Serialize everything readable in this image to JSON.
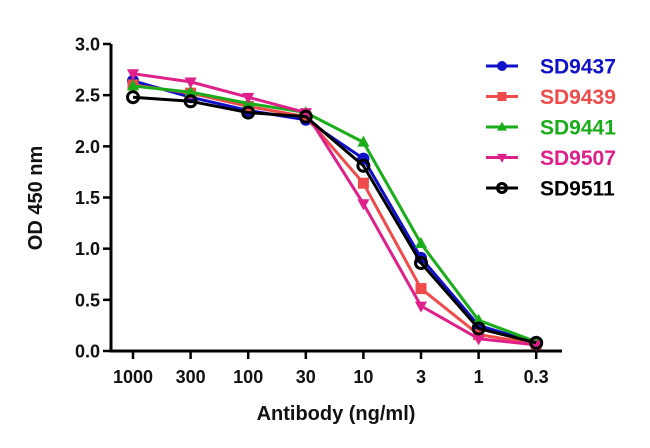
{
  "chart_data": {
    "type": "line",
    "title": "",
    "xlabel": "Antibody (ng/ml)",
    "ylabel": "OD 450 nm",
    "categories": [
      "1000",
      "300",
      "100",
      "30",
      "10",
      "3",
      "1",
      "0.3"
    ],
    "ylim": [
      0,
      3.0
    ],
    "yticks": [
      "0.0",
      "0.5",
      "1.0",
      "1.5",
      "2.0",
      "2.5",
      "3.0"
    ],
    "grid": false,
    "legend_position": "top-right",
    "series": [
      {
        "name": "SD9437",
        "color": "#1010c8",
        "marker": "circle-filled",
        "values": [
          2.64,
          2.48,
          2.35,
          2.26,
          1.88,
          0.91,
          0.25,
          0.08
        ]
      },
      {
        "name": "SD9439",
        "color": "#ef4b4b",
        "marker": "square",
        "values": [
          2.6,
          2.52,
          2.39,
          2.29,
          1.64,
          0.61,
          0.16,
          0.07
        ]
      },
      {
        "name": "SD9441",
        "color": "#1aad1a",
        "marker": "triangle-up",
        "values": [
          2.59,
          2.53,
          2.42,
          2.33,
          2.04,
          1.05,
          0.3,
          0.09
        ]
      },
      {
        "name": "SD9507",
        "color": "#e0208a",
        "marker": "triangle-down",
        "values": [
          2.71,
          2.63,
          2.48,
          2.33,
          1.44,
          0.44,
          0.12,
          0.06
        ]
      },
      {
        "name": "SD9511",
        "color": "#000000",
        "marker": "circle-open",
        "values": [
          2.48,
          2.44,
          2.33,
          2.29,
          1.81,
          0.86,
          0.22,
          0.08
        ]
      }
    ]
  }
}
